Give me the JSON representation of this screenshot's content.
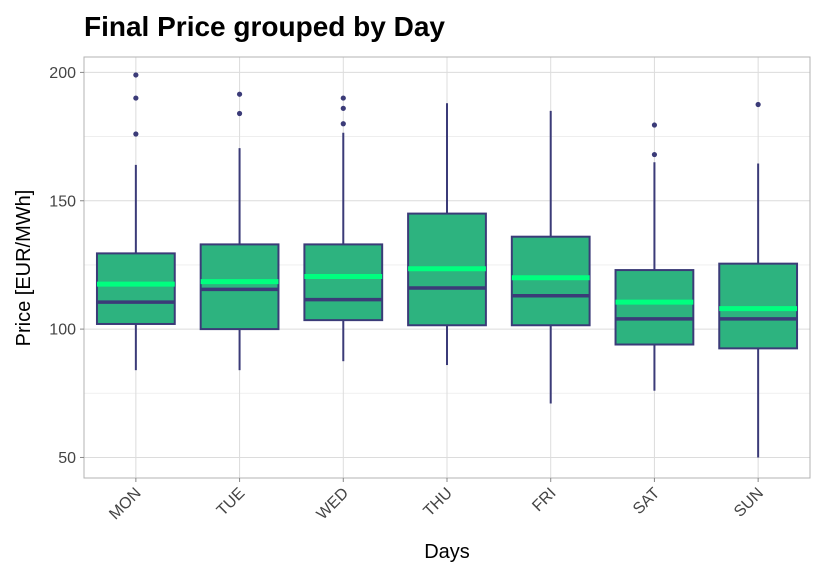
{
  "chart_data": {
    "type": "boxplot",
    "title": "Final Price grouped by Day",
    "xlabel": "Days",
    "ylabel": "Price [EUR/MWh]",
    "categories": [
      "MON",
      "TUE",
      "WED",
      "THU",
      "FRI",
      "SAT",
      "SUN"
    ],
    "ylim": [
      42,
      206
    ],
    "yticks": [
      50,
      100,
      150,
      200
    ],
    "grid": true,
    "x_tick_rotation_deg": -45,
    "boxes": [
      {
        "category": "MON",
        "whisker_low": 84,
        "q1": 102,
        "median": 110.5,
        "q3": 129.5,
        "whisker_high": 164,
        "mean": 117.5,
        "outliers": [
          176,
          190,
          199
        ]
      },
      {
        "category": "TUE",
        "whisker_low": 84,
        "q1": 100,
        "median": 115.5,
        "q3": 133,
        "whisker_high": 170.5,
        "mean": 118.5,
        "outliers": [
          184,
          191.5
        ]
      },
      {
        "category": "WED",
        "whisker_low": 87.5,
        "q1": 103.5,
        "median": 111.5,
        "q3": 133,
        "whisker_high": 176.5,
        "mean": 120.5,
        "outliers": [
          180,
          186,
          190
        ]
      },
      {
        "category": "THU",
        "whisker_low": 86,
        "q1": 101.5,
        "median": 116,
        "q3": 145,
        "whisker_high": 188,
        "mean": 123.5,
        "outliers": []
      },
      {
        "category": "FRI",
        "whisker_low": 71,
        "q1": 101.5,
        "median": 113,
        "q3": 136,
        "whisker_high": 185,
        "mean": 120,
        "outliers": []
      },
      {
        "category": "SAT",
        "whisker_low": 76,
        "q1": 94,
        "median": 104,
        "q3": 123,
        "whisker_high": 165,
        "mean": 110.5,
        "outliers": [
          168,
          179.5
        ]
      },
      {
        "category": "SUN",
        "whisker_low": 50,
        "q1": 92.5,
        "median": 104,
        "q3": 125.5,
        "whisker_high": 164.5,
        "mean": 108,
        "outliers": [
          187.5
        ]
      }
    ],
    "colors": {
      "box_fill": "#2db37f",
      "box_outline": "#3b3b78",
      "whisker": "#3b3b78",
      "median": "#3b3b78",
      "mean_line": "#00ff7f",
      "outlier": "#3b3b78",
      "panel_border": "#b3b3b3"
    }
  }
}
